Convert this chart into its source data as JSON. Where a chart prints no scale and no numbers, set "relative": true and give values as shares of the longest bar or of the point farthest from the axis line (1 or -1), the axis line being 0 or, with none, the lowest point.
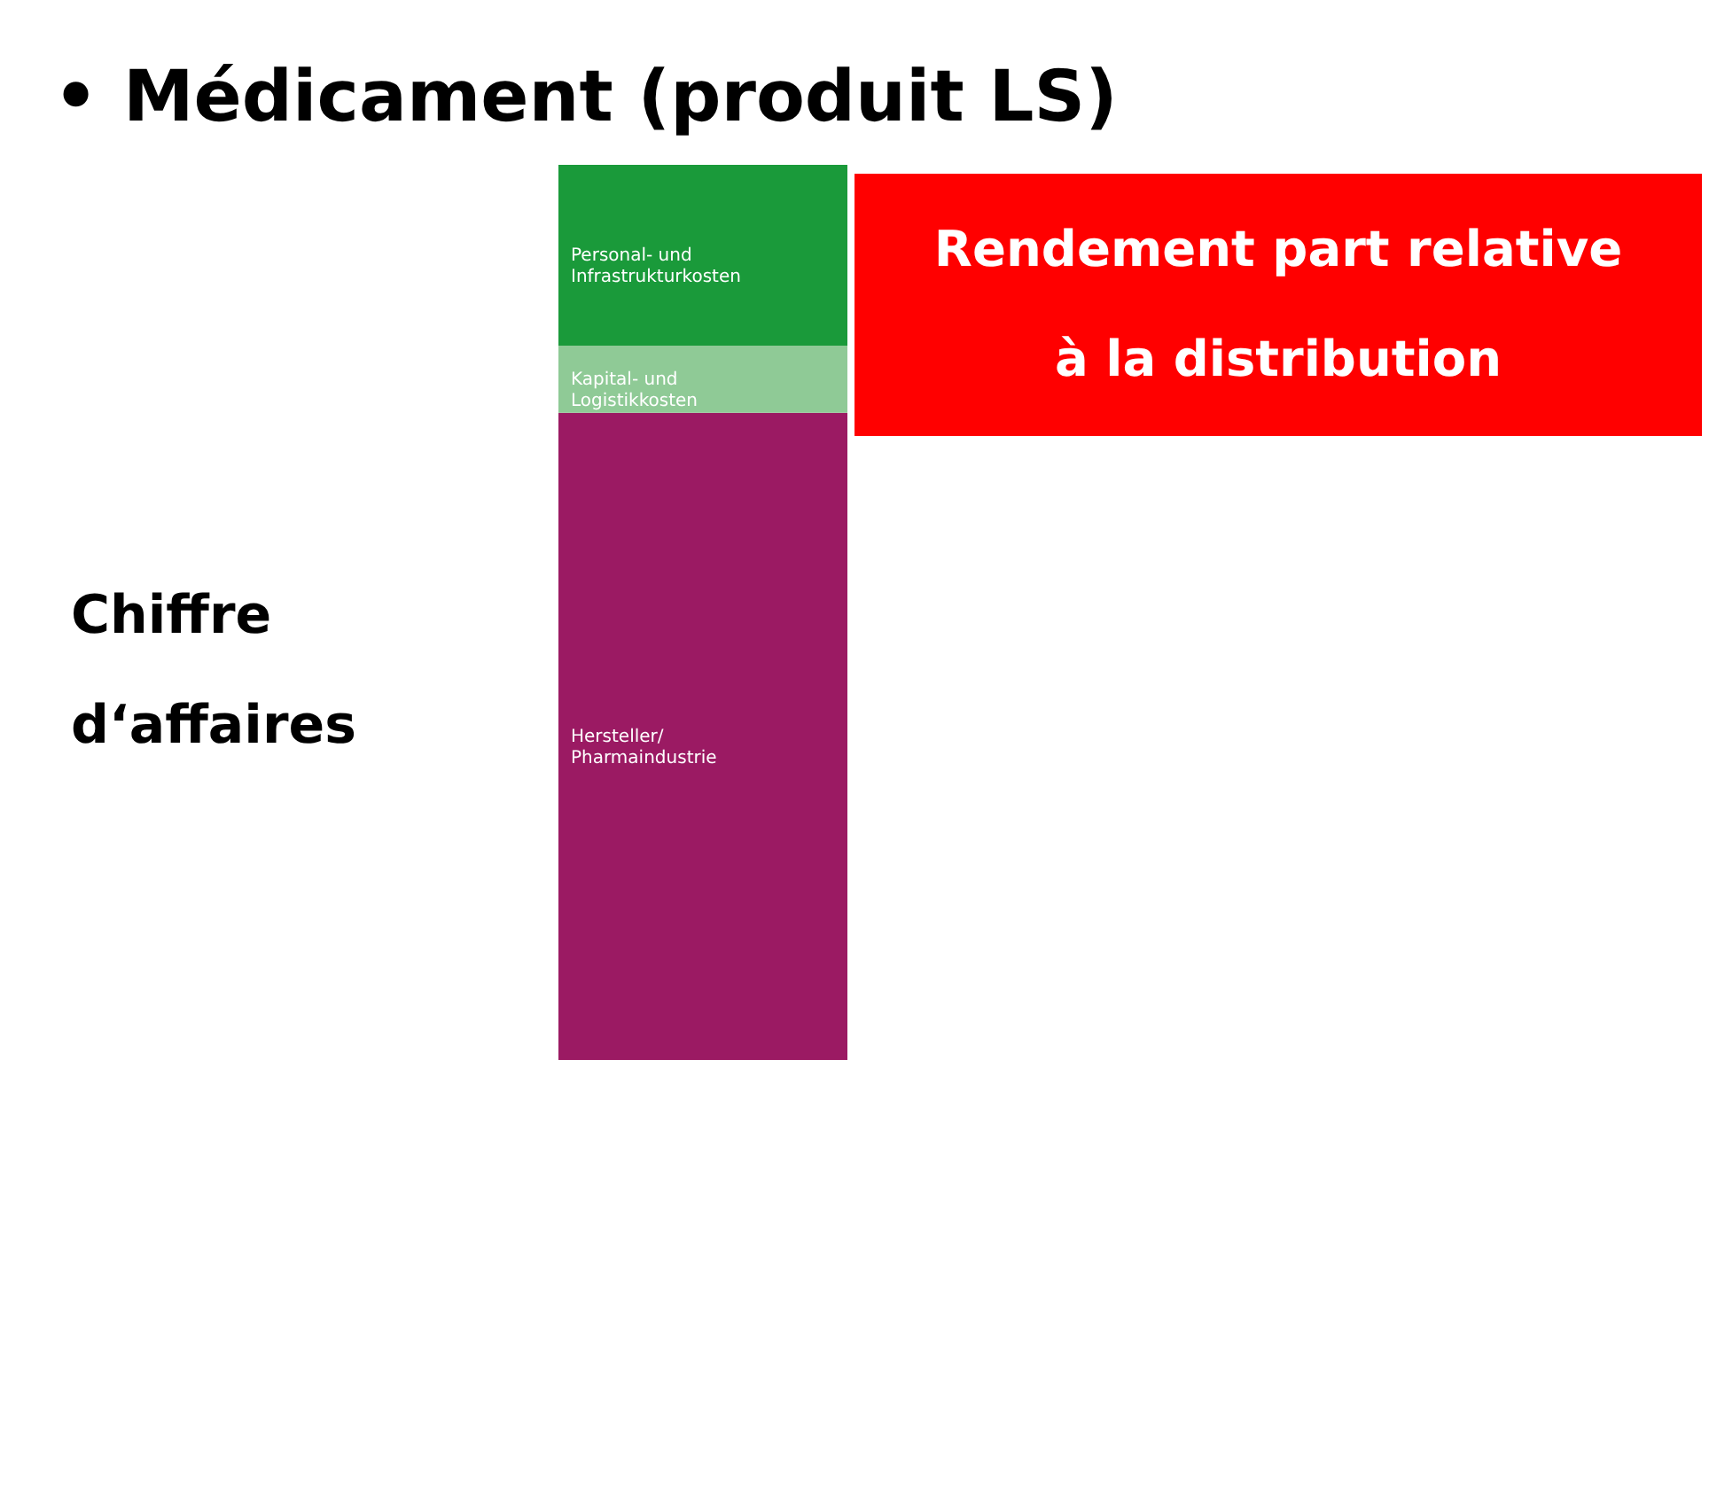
{
  "chart_data": {
    "type": "bar",
    "title": "• Médicament (produit LS)",
    "annotations": [
      "Chiffre\nd‘affaires",
      "Rendement part relative\nà la distribution"
    ],
    "categories": [
      null
    ],
    "stacked": true,
    "relative": true,
    "series": [
      {
        "name": "Hersteller/\nPharmaindustrie",
        "color": "#9b1a63",
        "values": [
          0.723
        ]
      },
      {
        "name": "Kapital- und\nLogistikkosten",
        "color": "#8fca96",
        "values": [
          0.075
        ]
      },
      {
        "name": "Personal- und\nInfrastrukturkosten",
        "color": "#1a9a3a",
        "values": [
          0.202
        ]
      }
    ]
  }
}
